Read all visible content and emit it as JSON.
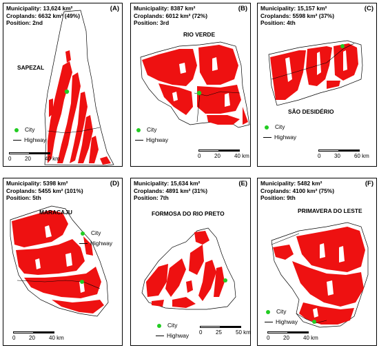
{
  "colors": {
    "cropland": "#ee1111",
    "city": "#22cc22",
    "outline": "#000000"
  },
  "legend": {
    "city": "City",
    "highway": "Highway"
  },
  "panels": [
    {
      "letter": "(A)",
      "municipality": "Municipality: 13,624 km²",
      "croplands": "Croplands: 6632 km² (49%)",
      "position": "Position: 2nd",
      "name": "SAPEZAL",
      "scale": [
        "0",
        "20",
        "40 km"
      ]
    },
    {
      "letter": "(B)",
      "municipality": "Municipality: 8387 km²",
      "croplands": "Croplands: 6012 km² (72%)",
      "position": "Position: 3rd",
      "name": "RIO VERDE",
      "scale": [
        "0",
        "20",
        "40 km"
      ]
    },
    {
      "letter": "(C)",
      "municipality": "Municipality: 15,157 km²",
      "croplands": "Croplands: 5598 km² (37%)",
      "position": "Position: 4th",
      "name": "SÃO DESIDÉRIO",
      "scale": [
        "0",
        "30",
        "60 km"
      ]
    },
    {
      "letter": "(D)",
      "municipality": "Municipality: 5398 km²",
      "croplands": "Croplands: 5455 km² (101%)",
      "position": "Position: 5th",
      "name": "MARACAJU",
      "scale": [
        "0",
        "20",
        "40 km"
      ]
    },
    {
      "letter": "(E)",
      "municipality": "Municipality: 15,634 km²",
      "croplands": "Croplands: 4891 km² (31%)",
      "position": "Position: 7th",
      "name": "FORMOSA DO RIO PRETO",
      "scale": [
        "0",
        "25",
        "50 km"
      ]
    },
    {
      "letter": "(F)",
      "municipality": "Municipality: 5482 km²",
      "croplands": "Croplands: 4100 km² (75%)",
      "position": "Position: 9th",
      "name": "PRIMAVERA DO LESTE",
      "scale": [
        "0",
        "20",
        "40 km"
      ]
    }
  ]
}
